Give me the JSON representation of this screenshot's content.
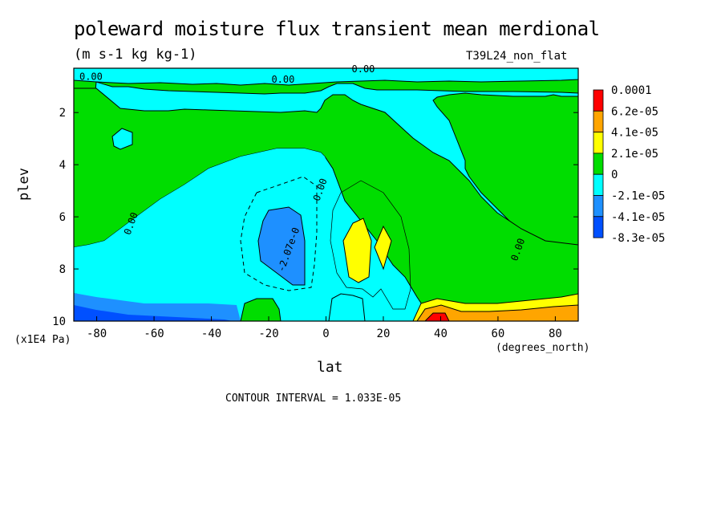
{
  "chart_data": {
    "type": "heatmap",
    "title": "poleward moisture flux transient mean merdional",
    "units": "(m s-1 kg kg-1)",
    "dataset": "T39L24_non_flat",
    "xlabel": "lat",
    "xunits": "(degrees_north)",
    "ylabel": "plev",
    "yunits": "(x1E4 Pa)",
    "xlim": [
      -88,
      88
    ],
    "ylim": [
      0.3,
      10
    ],
    "y_inverted": true,
    "x_ticks": [
      -80,
      -60,
      -40,
      -20,
      0,
      20,
      40,
      60,
      80
    ],
    "y_ticks": [
      2,
      4,
      6,
      8,
      10
    ],
    "contour_interval": "CONTOUR INTERVAL = 1.033E-05",
    "legend": {
      "position": "right",
      "labels": [
        "0.0001",
        "6.2e-05",
        "4.1e-05",
        "2.1e-05",
        "0",
        "-2.1e-05",
        "-4.1e-05",
        "-8.3e-05"
      ],
      "colors": [
        "#ff0000",
        "#ffa500",
        "#ffff00",
        "#00dd00",
        "#00ffff",
        "#1e90ff",
        "#0050ff"
      ]
    },
    "contour_labels": [
      {
        "text": "0.00",
        "lat": -82,
        "plev": 0.75
      },
      {
        "text": "0.00",
        "lat": -15,
        "plev": 0.85
      },
      {
        "text": "0.00",
        "lat": 13,
        "plev": 0.45
      },
      {
        "text": "0.00",
        "lat": -67,
        "plev": 6.3
      },
      {
        "text": "0.00",
        "lat": -1,
        "plev": 5.0
      },
      {
        "text": "-2.07e-0",
        "lat": -12,
        "plev": 7.3
      },
      {
        "text": "0.00",
        "lat": 68,
        "plev": 7.3
      }
    ]
  }
}
